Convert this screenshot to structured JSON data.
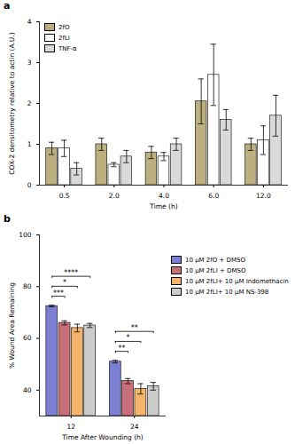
{
  "chart_data": [
    {
      "type": "bar",
      "panel": "a",
      "y_label": "COX-2 densitometry relative to actin (A.U.)",
      "x_label": "Time (h)",
      "categories": [
        "0.5",
        "2.0",
        "4.0",
        "6.0",
        "12.0"
      ],
      "series": [
        {
          "name": "2fO",
          "color": "#bcaf80",
          "values": [
            0.9,
            1.0,
            0.8,
            2.05,
            1.0
          ],
          "errors": [
            0.15,
            0.15,
            0.15,
            0.55,
            0.15
          ]
        },
        {
          "name": "2fLI",
          "color": "#ffffff",
          "values": [
            0.9,
            0.5,
            0.7,
            2.7,
            1.1
          ],
          "errors": [
            0.2,
            0.05,
            0.1,
            0.75,
            0.35
          ]
        },
        {
          "name": "TNF-α",
          "color": "#d9d9d9",
          "values": [
            0.4,
            0.7,
            1.0,
            1.6,
            1.7
          ],
          "errors": [
            0.15,
            0.15,
            0.15,
            0.25,
            0.5
          ]
        }
      ],
      "ylim": [
        0,
        4
      ],
      "yticks": [
        0,
        1,
        2,
        3,
        4
      ],
      "legend": "top-left"
    },
    {
      "type": "bar",
      "panel": "b",
      "y_label": "% Wound Area Remaining",
      "x_label": "Time After Wounding (h)",
      "categories": [
        "12",
        "24"
      ],
      "series": [
        {
          "name": "10 μM 2fO + DMSO",
          "color": "#7d7fd3",
          "values": [
            72.5,
            51
          ],
          "errors": [
            0.3,
            0.5
          ]
        },
        {
          "name": "10 μM 2fLI + DMSO",
          "color": "#c8707a",
          "values": [
            66,
            43.5
          ],
          "errors": [
            0.8,
            1.0
          ]
        },
        {
          "name": "10 μM 2fLI+ 10 μM Indomethacin",
          "color": "#f5b46b",
          "values": [
            64,
            40.5
          ],
          "errors": [
            1.5,
            2.0
          ]
        },
        {
          "name": "10 μM 2fLI+ 10 μM NS-398",
          "color": "#cccccc",
          "values": [
            65,
            41.5
          ],
          "errors": [
            0.8,
            1.5
          ]
        }
      ],
      "ylim": [
        30,
        100
      ],
      "yticks": [
        40,
        60,
        80,
        100
      ],
      "legend": "right",
      "annotations": [
        {
          "category": "12",
          "from": "10 μM 2fO + DMSO",
          "to": "10 μM 2fLI + DMSO",
          "label": "***"
        },
        {
          "category": "12",
          "from": "10 μM 2fO + DMSO",
          "to": "10 μM 2fLI+ 10 μM Indomethacin",
          "label": "*"
        },
        {
          "category": "12",
          "from": "10 μM 2fO + DMSO",
          "to": "10 μM 2fLI+ 10 μM NS-398",
          "label": "****"
        },
        {
          "category": "24",
          "from": "10 μM 2fO + DMSO",
          "to": "10 μM 2fLI + DMSO",
          "label": "**"
        },
        {
          "category": "24",
          "from": "10 μM 2fO + DMSO",
          "to": "10 μM 2fLI+ 10 μM Indomethacin",
          "label": "*"
        },
        {
          "category": "24",
          "from": "10 μM 2fO + DMSO",
          "to": "10 μM 2fLI+ 10 μM NS-398",
          "label": "**"
        }
      ]
    }
  ]
}
